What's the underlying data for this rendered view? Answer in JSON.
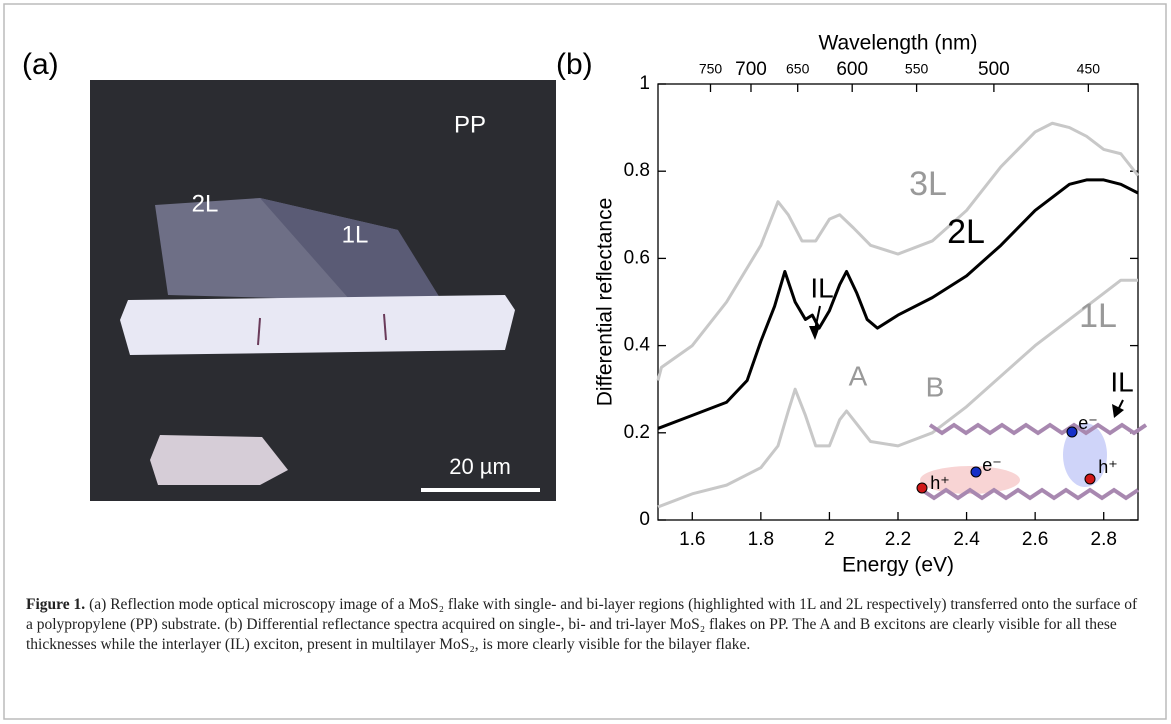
{
  "panel_a": {
    "label": "(a)",
    "texts": [
      "PP",
      "2L",
      "1L"
    ],
    "scale_bar": "20 µm"
  },
  "chart_data": {
    "type": "line",
    "panel_label": "(b)",
    "xlabel": "Energy (eV)",
    "ylabel": "Differential reflectance",
    "x2label": "Wavelength (nm)",
    "xlim": [
      1.5,
      2.9
    ],
    "xticks": [
      1.6,
      1.8,
      2,
      2.2,
      2.4,
      2.6,
      2.8
    ],
    "ylim": [
      0,
      1
    ],
    "yticks": [
      0,
      0.2,
      0.4,
      0.6,
      0.8,
      1
    ],
    "x2ticks": [
      750,
      700,
      650,
      600,
      550,
      500,
      450
    ],
    "series": [
      {
        "name": "3L",
        "color": "#c8c8c8",
        "x": [
          1.5,
          1.51,
          1.6,
          1.7,
          1.8,
          1.85,
          1.88,
          1.92,
          1.96,
          2.0,
          2.03,
          2.07,
          2.12,
          2.2,
          2.3,
          2.4,
          2.5,
          2.6,
          2.65,
          2.7,
          2.75,
          2.8,
          2.85,
          2.9
        ],
        "values": [
          0.32,
          0.35,
          0.4,
          0.5,
          0.63,
          0.73,
          0.7,
          0.64,
          0.64,
          0.69,
          0.7,
          0.67,
          0.63,
          0.61,
          0.64,
          0.71,
          0.81,
          0.89,
          0.91,
          0.9,
          0.88,
          0.85,
          0.84,
          0.79
        ]
      },
      {
        "name": "2L",
        "color": "#000000",
        "x": [
          1.5,
          1.6,
          1.7,
          1.76,
          1.8,
          1.84,
          1.87,
          1.9,
          1.93,
          1.95,
          1.97,
          2.0,
          2.03,
          2.05,
          2.08,
          2.11,
          2.14,
          2.2,
          2.3,
          2.4,
          2.5,
          2.6,
          2.7,
          2.75,
          2.8,
          2.85,
          2.9
        ],
        "values": [
          0.21,
          0.24,
          0.27,
          0.32,
          0.41,
          0.49,
          0.57,
          0.5,
          0.46,
          0.47,
          0.44,
          0.48,
          0.54,
          0.57,
          0.52,
          0.46,
          0.44,
          0.47,
          0.51,
          0.56,
          0.63,
          0.71,
          0.77,
          0.78,
          0.78,
          0.77,
          0.75
        ]
      },
      {
        "name": "1L",
        "color": "#c8c8c8",
        "x": [
          1.5,
          1.6,
          1.7,
          1.8,
          1.85,
          1.88,
          1.9,
          1.93,
          1.96,
          2.0,
          2.03,
          2.05,
          2.08,
          2.12,
          2.2,
          2.3,
          2.4,
          2.5,
          2.6,
          2.7,
          2.8,
          2.85,
          2.9
        ],
        "values": [
          0.03,
          0.06,
          0.08,
          0.12,
          0.17,
          0.25,
          0.3,
          0.24,
          0.17,
          0.17,
          0.23,
          0.25,
          0.22,
          0.18,
          0.17,
          0.2,
          0.26,
          0.33,
          0.4,
          0.46,
          0.52,
          0.55,
          0.55
        ]
      }
    ],
    "annotations": [
      "IL",
      "A",
      "B",
      "IL",
      "e⁻",
      "h⁺",
      "e⁻",
      "h⁺"
    ]
  },
  "caption": {
    "label": "Figure 1.",
    "text": "(a) Reflection mode optical microscopy image of a MoS₂ flake with single- and bi-layer regions (highlighted with 1L and 2L respectively) transferred onto the surface of a polypropylene (PP) substrate. (b) Differential reflectance spectra acquired on single-, bi- and tri-layer MoS₂ flakes on PP. The A and B excitons are clearly visible for all these thicknesses while the interlayer (IL) exciton, present in multilayer MoS₂, is more clearly visible for the bilayer flake."
  }
}
